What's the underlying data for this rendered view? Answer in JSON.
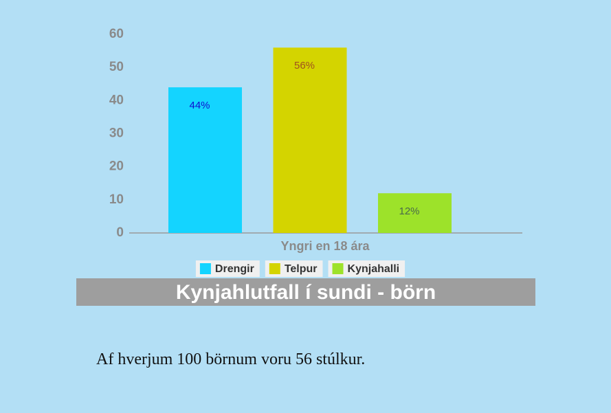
{
  "chart_data": {
    "type": "bar",
    "title": "Kynjahlutfall í sundi - börn",
    "categories": [
      "Yngri en 18 ára"
    ],
    "series": [
      {
        "name": "Drengir",
        "color": "#14d4ff",
        "label_color": "#1010d0",
        "values": [
          44
        ],
        "value_labels": [
          "44%"
        ]
      },
      {
        "name": "Telpur",
        "color": "#d4d400",
        "label_color": "#a0521e",
        "values": [
          56
        ],
        "value_labels": [
          "56%"
        ]
      },
      {
        "name": "Kynjahalli",
        "color": "#9de22a",
        "label_color": "#4a6a4a",
        "values": [
          12
        ],
        "value_labels": [
          "12%"
        ]
      }
    ],
    "ylim": [
      0,
      60
    ],
    "yticks": [
      0,
      10,
      20,
      30,
      40,
      50,
      60
    ],
    "grid": false,
    "legend": "bottom"
  },
  "caption": "Af hverjum 100 börnum voru 56 stúlkur."
}
